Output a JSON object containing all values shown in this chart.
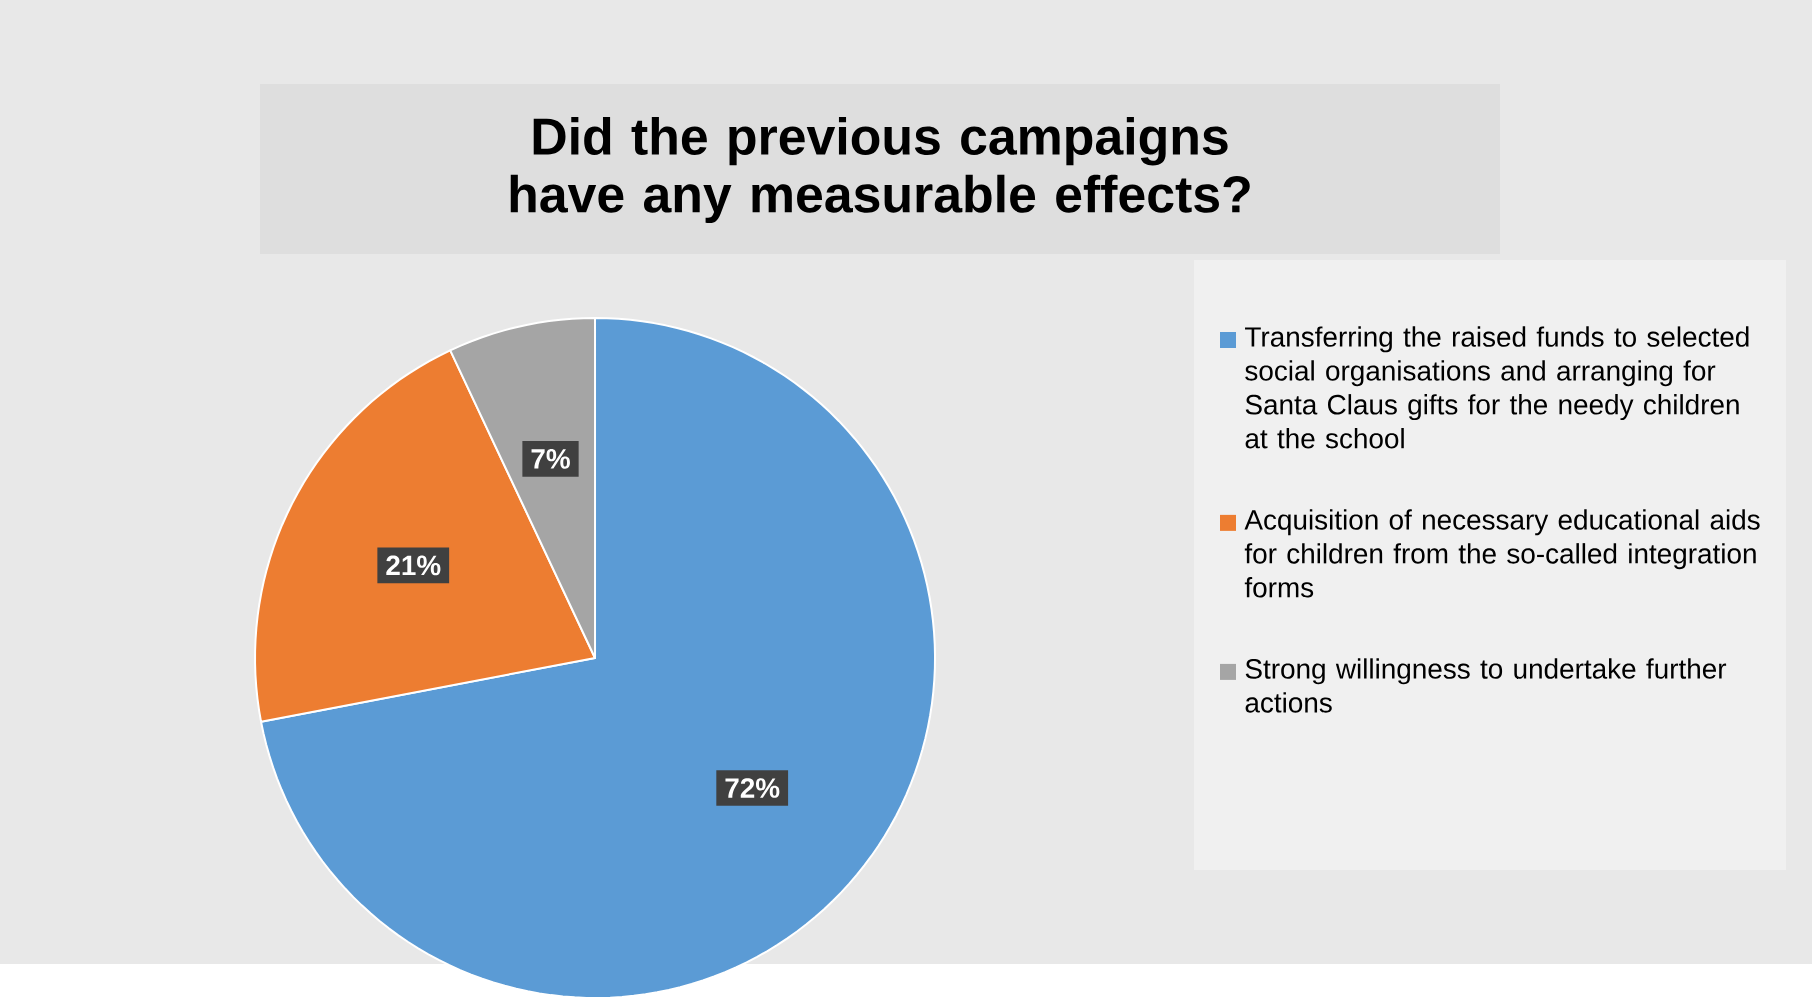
{
  "chart_data": {
    "type": "pie",
    "title": "Did the previous campaigns have any measurable effects?",
    "categories": [
      "Transferring the raised funds to selected social organisations and arranging for Santa Claus gifts for the needy children at the school",
      "Acquisition of necessary educational aids for children from the so-called integration forms",
      "Strong willingness to undertake further actions"
    ],
    "values": [
      72,
      21,
      7
    ],
    "colors": [
      "#5b9bd5",
      "#ed7d31",
      "#a5a5a5"
    ],
    "value_labels": [
      "72%",
      "21%",
      "7%"
    ],
    "legend": "right"
  }
}
